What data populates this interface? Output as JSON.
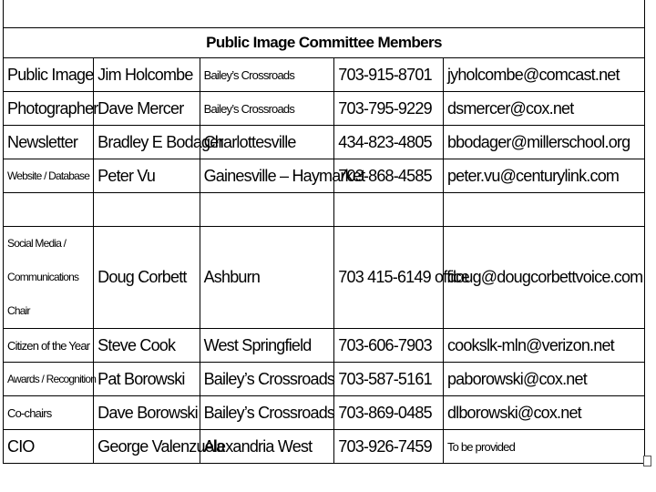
{
  "title": "Public Image Committee Members",
  "rows": [
    {
      "role": "Public Image",
      "name": "Jim Holcombe",
      "location": "Bailey’s Crossroads",
      "phone": "703-915-8701",
      "email": "jyholcombe@comcast.net"
    },
    {
      "role": "Photographer",
      "name": "Dave Mercer",
      "location": "Bailey’s Crossroads",
      "phone": "703-795-9229",
      "email": "dsmercer@cox.net"
    },
    {
      "role": "Newsletter",
      "name": "Bradley E Bodager",
      "location": "Charlottesville",
      "phone": "434-823-4805",
      "email": "bbodager@millerschool.org"
    },
    {
      "role": "Website / Database",
      "name": "Peter Vu",
      "location": "Gainesville – Haymarket",
      "phone": "703-868-4585",
      "email": "peter.vu@centurylink.com"
    },
    {
      "role": "Social Media / Communications Chair",
      "name": "Doug Corbett",
      "location": "Ashburn",
      "phone": "703 415-6149 office",
      "email": "doug@dougcorbettvoice.com"
    },
    {
      "role": "Citizen of the Year",
      "name": "Steve Cook",
      "location": "West Springfield",
      "phone": "703-606-7903",
      "email": "cookslk-mln@verizon.net"
    },
    {
      "role": "Awards / Recognition",
      "name": "Pat Borowski",
      "location": "Bailey’s Crossroads",
      "phone": "703-587-5161",
      "email": "paborowski@cox.net"
    },
    {
      "role": "Co-chairs",
      "name": "Dave Borowski",
      "location": "Bailey’s Crossroads",
      "phone": "703-869-0485",
      "email": "dlborowski@cox.net"
    },
    {
      "role": "CIO",
      "name": "George Valenzuela",
      "location": "Alexandria West",
      "phone": "703-926-7459",
      "email": "To be provided"
    }
  ]
}
